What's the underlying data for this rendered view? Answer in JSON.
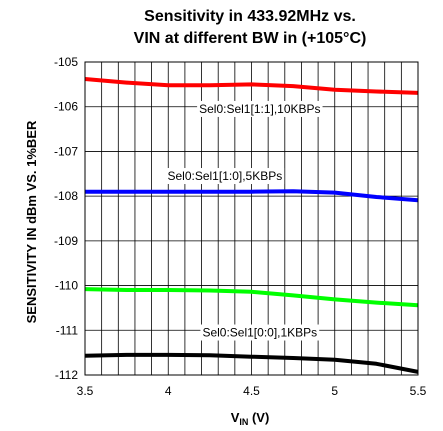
{
  "chart_data": {
    "type": "line",
    "title_line1": "Sensitivity in 433.92MHz vs.",
    "title_line2": "VIN at different BW in (+105°C)",
    "ylabel": "SENSITIVITY IN dBm VS. 1%BER",
    "xlabel_main": "V",
    "xlabel_sub": "IN",
    "xlabel_unit": " (V)",
    "xlim": [
      3.5,
      5.5
    ],
    "ylim": [
      -112,
      -105
    ],
    "x_ticks": [
      "3.5",
      "4",
      "4.5",
      "5",
      "5.5"
    ],
    "y_ticks": [
      "-105",
      "-106",
      "-107",
      "-108",
      "-109",
      "-110",
      "-111",
      "-112"
    ],
    "grid": true,
    "series": [
      {
        "name": "Sel0:Sel1[1:1],10KBPs",
        "color": "#ff0000",
        "x": [
          3.5,
          3.75,
          4.0,
          4.25,
          4.5,
          4.75,
          5.0,
          5.25,
          5.5
        ],
        "y": [
          -105.38,
          -105.46,
          -105.52,
          -105.52,
          -105.5,
          -105.54,
          -105.62,
          -105.66,
          -105.69
        ]
      },
      {
        "name": "Sel0:Sel1[1:0],5KBPs",
        "color": "#0000ff",
        "x": [
          3.5,
          3.75,
          4.0,
          4.25,
          4.5,
          4.75,
          5.0,
          5.25,
          5.5
        ],
        "y": [
          -107.9,
          -107.9,
          -107.9,
          -107.9,
          -107.9,
          -107.89,
          -107.92,
          -108.02,
          -108.09
        ]
      },
      {
        "name": "",
        "color": "#00ff00",
        "x": [
          3.5,
          3.75,
          4.0,
          4.25,
          4.5,
          4.75,
          5.0,
          5.25,
          5.5
        ],
        "y": [
          -110.08,
          -110.1,
          -110.1,
          -110.11,
          -110.14,
          -110.22,
          -110.31,
          -110.38,
          -110.44
        ]
      },
      {
        "name": "Sel0:Sel1[0:0],1KBPs",
        "color": "#000000",
        "x": [
          3.5,
          3.75,
          4.0,
          4.25,
          4.5,
          4.75,
          5.0,
          5.25,
          5.5
        ],
        "y": [
          -111.57,
          -111.55,
          -111.55,
          -111.56,
          -111.59,
          -111.62,
          -111.66,
          -111.75,
          -111.93
        ]
      }
    ],
    "series_labels": [
      {
        "text": "Sel0:Sel1[1:1],10KBPs",
        "x": 4.55,
        "y": -106.05
      },
      {
        "text": "Sel0:Sel1[1:0],5KBPs",
        "x": 4.34,
        "y": -107.55
      },
      {
        "text": "Sel0:Sel1[0:0],1KBPs",
        "x": 4.55,
        "y": -111.05
      }
    ]
  }
}
